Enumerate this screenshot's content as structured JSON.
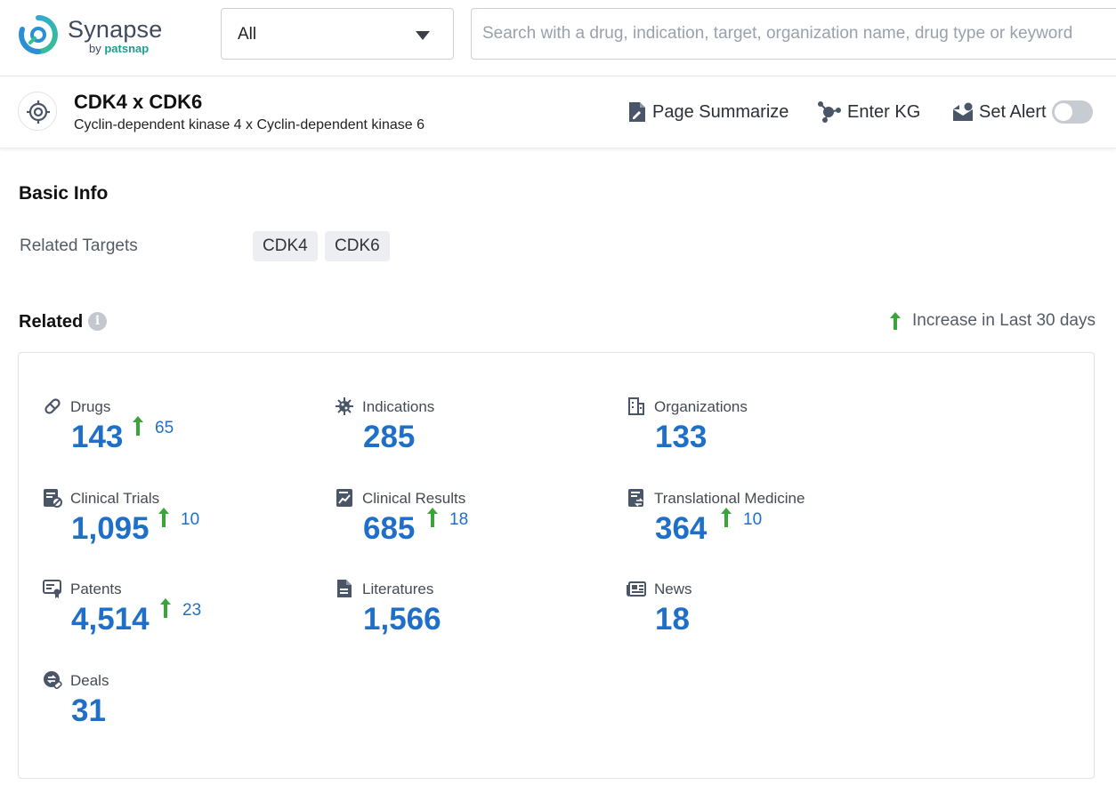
{
  "brand": {
    "name": "Synapse",
    "by_prefix": "by",
    "by_name": "patsnap"
  },
  "search": {
    "scope": "All",
    "placeholder": "Search with a drug, indication, target, organization name, drug type or keyword",
    "value": ""
  },
  "entity": {
    "title": "CDK4 x CDK6",
    "subtitle": "Cyclin-dependent kinase 4 x Cyclin-dependent kinase 6",
    "actions": {
      "summarize": "Page Summarize",
      "kg": "Enter KG",
      "alert": "Set Alert"
    },
    "alert_enabled": false
  },
  "basic_info": {
    "title": "Basic Info",
    "related_targets_label": "Related Targets",
    "related_targets": [
      "CDK4",
      "CDK6"
    ]
  },
  "related": {
    "title": "Related",
    "info": "i",
    "legend": "Increase in Last 30 days",
    "items": [
      {
        "label": "Drugs",
        "count": "143",
        "increase": "65",
        "icon": "pill-icon"
      },
      {
        "label": "Indications",
        "count": "285",
        "increase": "",
        "icon": "virus-icon"
      },
      {
        "label": "Organizations",
        "count": "133",
        "increase": "",
        "icon": "building-icon"
      },
      {
        "label": "Clinical Trials",
        "count": "1,095",
        "increase": "10",
        "icon": "clinical-trial-icon"
      },
      {
        "label": "Clinical Results",
        "count": "685",
        "increase": "18",
        "icon": "chart-report-icon"
      },
      {
        "label": "Translational Medicine",
        "count": "364",
        "increase": "10",
        "icon": "translational-icon"
      },
      {
        "label": "Patents",
        "count": "4,514",
        "increase": "23",
        "icon": "patent-certificate-icon"
      },
      {
        "label": "Literatures",
        "count": "1,566",
        "increase": "",
        "icon": "document-icon"
      },
      {
        "label": "News",
        "count": "18",
        "increase": "",
        "icon": "newspaper-icon"
      },
      {
        "label": "Deals",
        "count": "31",
        "increase": "",
        "icon": "deal-icon"
      }
    ]
  },
  "colors": {
    "accent": "#1f6fc9",
    "increase": "#3aa43a",
    "icon": "#4a5568",
    "brand_teal": "#1f9d8f"
  }
}
